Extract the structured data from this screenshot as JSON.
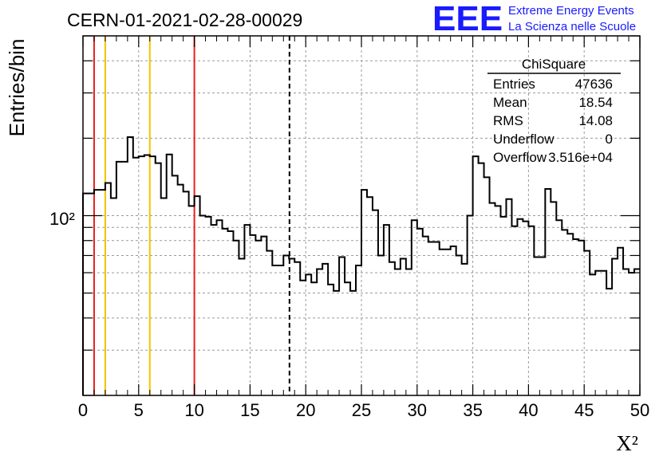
{
  "header": {
    "title": "CERN-01-2021-02-28-00029",
    "logo_text": "EEE",
    "logo_line1": "Extreme Energy Events",
    "logo_line2": "La Scienza nelle Scuole",
    "logo_color": "#1a1aff"
  },
  "stats_box": {
    "title": "ChiSquare",
    "rows": [
      {
        "label": "Entries",
        "value": "47636"
      },
      {
        "label": "Mean",
        "value": "18.54"
      },
      {
        "label": "RMS",
        "value": "14.08"
      },
      {
        "label": "Underflow",
        "value": "0"
      },
      {
        "label": "Overflow",
        "value": "3.516e+04"
      }
    ]
  },
  "chart_data": {
    "type": "histogram",
    "title": "CERN-01-2021-02-28-00029",
    "xlabel": "X²",
    "ylabel": "Entries/bin",
    "xlim": [
      0,
      50
    ],
    "ylim": [
      20,
      500
    ],
    "yscale": "log",
    "grid": true,
    "bin_width": 0.5,
    "x_ticks": [
      "0",
      "5",
      "10",
      "15",
      "20",
      "25",
      "30",
      "35",
      "40",
      "45",
      "50"
    ],
    "y_tick_label": "10²",
    "values": [
      122,
      122,
      126,
      126,
      134,
      117,
      162,
      162,
      202,
      168,
      170,
      172,
      170,
      160,
      117,
      173,
      143,
      132,
      124,
      109,
      119,
      100,
      99,
      92,
      96,
      89,
      87,
      80,
      68,
      92,
      84,
      80,
      83,
      73,
      64,
      64,
      70,
      68,
      66,
      56,
      59,
      55,
      62,
      65,
      54,
      51,
      69,
      55,
      51,
      64,
      126,
      118,
      105,
      70,
      92,
      66,
      62,
      68,
      62,
      96,
      89,
      83,
      79,
      79,
      74,
      74,
      76,
      70,
      65,
      100,
      170,
      160,
      141,
      112,
      109,
      99,
      116,
      91,
      97,
      95,
      91,
      69,
      69,
      127,
      113,
      96,
      88,
      85,
      81,
      80,
      73,
      59,
      61,
      61,
      52,
      68,
      75,
      62,
      60,
      62
    ],
    "vlines": [
      {
        "x": 1,
        "color": "#e8221b",
        "style": "solid"
      },
      {
        "x": 2,
        "color": "#f2c300",
        "style": "solid"
      },
      {
        "x": 6,
        "color": "#f2c300",
        "style": "solid"
      },
      {
        "x": 10,
        "color": "#e8221b",
        "style": "solid"
      },
      {
        "x": 18.54,
        "color": "#000000",
        "style": "dashed"
      }
    ]
  }
}
